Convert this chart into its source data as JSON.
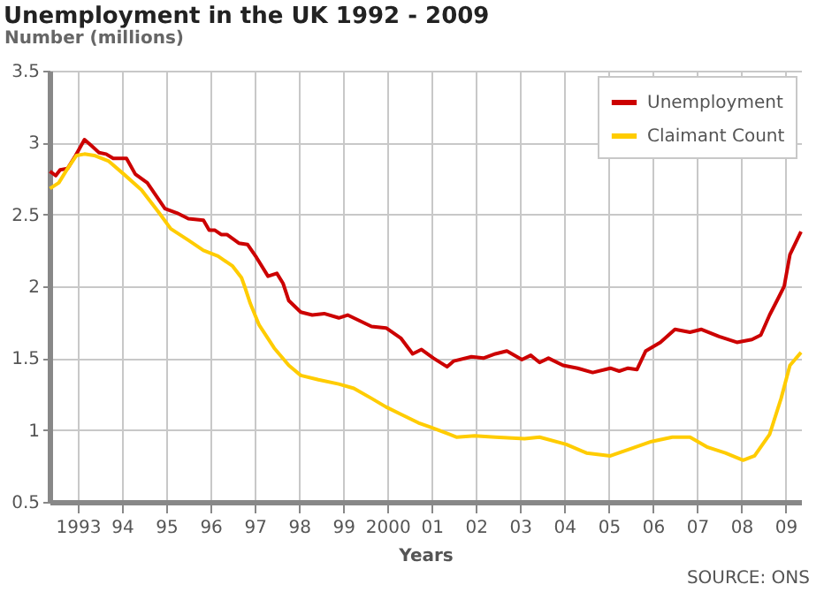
{
  "chart_data": {
    "type": "line",
    "title": "Unemployment in the UK 1992 - 2009",
    "ylabel": "Number (millions)",
    "xlabel": "Years",
    "annotations": [
      "SOURCE: ONS"
    ],
    "xlim": [
      1992.36,
      2009.35
    ],
    "ylim": [
      0.5,
      3.5
    ],
    "xticks": [
      {
        "value": 1993,
        "label": "1993"
      },
      {
        "value": 1994,
        "label": "94"
      },
      {
        "value": 1995,
        "label": "95"
      },
      {
        "value": 1996,
        "label": "96"
      },
      {
        "value": 1997,
        "label": "97"
      },
      {
        "value": 1998,
        "label": "98"
      },
      {
        "value": 1999,
        "label": "99"
      },
      {
        "value": 2000,
        "label": "2000"
      },
      {
        "value": 2001,
        "label": "01"
      },
      {
        "value": 2002,
        "label": "02"
      },
      {
        "value": 2003,
        "label": "03"
      },
      {
        "value": 2004,
        "label": "04"
      },
      {
        "value": 2005,
        "label": "05"
      },
      {
        "value": 2006,
        "label": "06"
      },
      {
        "value": 2007,
        "label": "07"
      },
      {
        "value": 2008,
        "label": "08"
      },
      {
        "value": 2009,
        "label": "09"
      }
    ],
    "yticks": [
      0.5,
      1,
      1.5,
      2,
      2.5,
      3,
      3.5
    ],
    "grid": true,
    "legend": "top right",
    "line_style": "solid",
    "marker": "none",
    "series": [
      {
        "name": "Unemployment",
        "color": "#cc0000",
        "x": [
          1992.37,
          1992.5,
          1992.6,
          1992.77,
          1992.95,
          1993.15,
          1993.3,
          1993.48,
          1993.64,
          1993.8,
          1994.1,
          1994.3,
          1994.57,
          1994.97,
          1995.24,
          1995.5,
          1995.84,
          1995.97,
          1996.1,
          1996.24,
          1996.37,
          1996.64,
          1996.84,
          1997.04,
          1997.3,
          1997.5,
          1997.64,
          1997.77,
          1998.04,
          1998.3,
          1998.57,
          1998.9,
          1999.1,
          1999.37,
          1999.64,
          1999.97,
          2000.3,
          2000.57,
          2000.77,
          2001.04,
          2001.35,
          2001.5,
          2001.9,
          2002.17,
          2002.44,
          2002.7,
          2003.04,
          2003.24,
          2003.44,
          2003.64,
          2003.97,
          2004.3,
          2004.64,
          2005.04,
          2005.24,
          2005.44,
          2005.64,
          2005.84,
          2006.17,
          2006.5,
          2006.84,
          2007.1,
          2007.5,
          2007.9,
          2008.24,
          2008.44,
          2008.64,
          2008.84,
          2008.97,
          2009.1,
          2009.35
        ],
        "values": [
          2.8,
          2.77,
          2.81,
          2.82,
          2.91,
          3.02,
          2.98,
          2.93,
          2.92,
          2.89,
          2.89,
          2.78,
          2.72,
          2.54,
          2.51,
          2.47,
          2.46,
          2.39,
          2.39,
          2.36,
          2.36,
          2.3,
          2.29,
          2.2,
          2.07,
          2.09,
          2.02,
          1.9,
          1.82,
          1.8,
          1.81,
          1.78,
          1.8,
          1.76,
          1.72,
          1.71,
          1.64,
          1.53,
          1.56,
          1.5,
          1.44,
          1.48,
          1.51,
          1.5,
          1.53,
          1.55,
          1.49,
          1.52,
          1.47,
          1.5,
          1.45,
          1.43,
          1.4,
          1.43,
          1.41,
          1.43,
          1.42,
          1.55,
          1.61,
          1.7,
          1.68,
          1.7,
          1.65,
          1.61,
          1.63,
          1.66,
          1.8,
          1.92,
          2.0,
          2.22,
          2.38
        ]
      },
      {
        "name": "Claimant Count",
        "color": "#ffcc00",
        "x": [
          1992.37,
          1992.57,
          1992.77,
          1992.97,
          1993.15,
          1993.37,
          1993.7,
          1994.04,
          1994.44,
          1994.84,
          1995.1,
          1995.5,
          1995.84,
          1996.17,
          1996.5,
          1996.7,
          1996.77,
          1996.9,
          1997.1,
          1997.44,
          1997.77,
          1998.04,
          1998.44,
          1998.9,
          1999.24,
          1999.64,
          1999.97,
          2000.3,
          2000.7,
          2000.97,
          2001.57,
          2001.97,
          2002.44,
          2003.1,
          2003.44,
          2004.04,
          2004.5,
          2005.04,
          2005.5,
          2005.97,
          2006.44,
          2006.84,
          2007.24,
          2007.64,
          2008.04,
          2008.3,
          2008.64,
          2008.9,
          2009.1,
          2009.35
        ],
        "values": [
          2.68,
          2.72,
          2.82,
          2.91,
          2.92,
          2.91,
          2.87,
          2.78,
          2.67,
          2.51,
          2.4,
          2.32,
          2.25,
          2.21,
          2.14,
          2.06,
          2.0,
          1.88,
          1.73,
          1.57,
          1.45,
          1.38,
          1.35,
          1.32,
          1.29,
          1.22,
          1.16,
          1.11,
          1.05,
          1.02,
          0.95,
          0.96,
          0.95,
          0.94,
          0.95,
          0.9,
          0.84,
          0.82,
          0.87,
          0.92,
          0.95,
          0.95,
          0.88,
          0.84,
          0.79,
          0.82,
          0.97,
          1.22,
          1.45,
          1.54
        ]
      }
    ]
  }
}
